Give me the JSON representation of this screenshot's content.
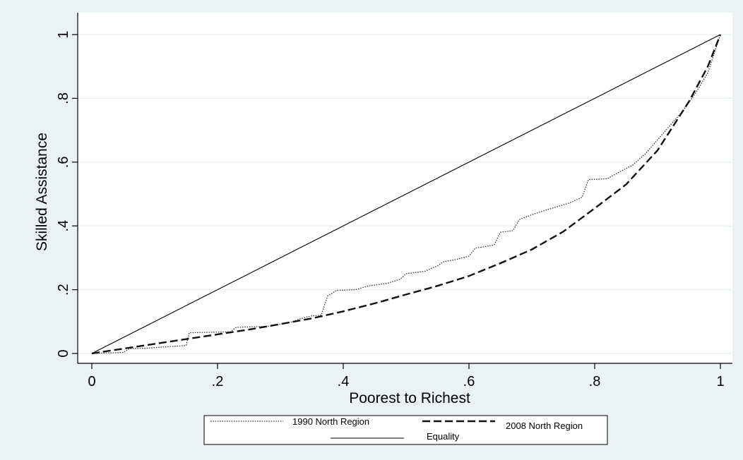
{
  "chart_data": {
    "type": "line",
    "title": "",
    "xlabel": "Poorest to Richest",
    "ylabel": "Skilled Assistance",
    "xlim": [
      0,
      1
    ],
    "ylim": [
      0,
      1
    ],
    "x_ticks": [
      {
        "value": 0,
        "label": "0"
      },
      {
        "value": 0.2,
        "label": ".2"
      },
      {
        "value": 0.4,
        "label": ".4"
      },
      {
        "value": 0.6,
        "label": ".6"
      },
      {
        "value": 0.8,
        "label": ".8"
      },
      {
        "value": 1,
        "label": "1"
      }
    ],
    "y_ticks": [
      {
        "value": 0,
        "label": "0"
      },
      {
        "value": 0.2,
        "label": ".2"
      },
      {
        "value": 0.4,
        "label": ".4"
      },
      {
        "value": 0.6,
        "label": ".6"
      },
      {
        "value": 0.8,
        "label": ".8"
      },
      {
        "value": 1,
        "label": "1"
      }
    ],
    "grid": true,
    "legend_position": "bottom",
    "series": [
      {
        "name": "1990 North Region",
        "style": "dotted",
        "color": "#333333",
        "points": [
          [
            0,
            0
          ],
          [
            0.05,
            0.003
          ],
          [
            0.06,
            0.015
          ],
          [
            0.09,
            0.017
          ],
          [
            0.15,
            0.025
          ],
          [
            0.155,
            0.065
          ],
          [
            0.22,
            0.068
          ],
          [
            0.23,
            0.082
          ],
          [
            0.28,
            0.085
          ],
          [
            0.3,
            0.092
          ],
          [
            0.32,
            0.1
          ],
          [
            0.33,
            0.108
          ],
          [
            0.35,
            0.118
          ],
          [
            0.365,
            0.12
          ],
          [
            0.375,
            0.18
          ],
          [
            0.39,
            0.198
          ],
          [
            0.42,
            0.2
          ],
          [
            0.44,
            0.212
          ],
          [
            0.47,
            0.22
          ],
          [
            0.49,
            0.232
          ],
          [
            0.5,
            0.25
          ],
          [
            0.53,
            0.258
          ],
          [
            0.55,
            0.275
          ],
          [
            0.56,
            0.288
          ],
          [
            0.58,
            0.295
          ],
          [
            0.6,
            0.305
          ],
          [
            0.61,
            0.33
          ],
          [
            0.64,
            0.34
          ],
          [
            0.65,
            0.38
          ],
          [
            0.67,
            0.385
          ],
          [
            0.68,
            0.42
          ],
          [
            0.7,
            0.435
          ],
          [
            0.72,
            0.448
          ],
          [
            0.74,
            0.46
          ],
          [
            0.76,
            0.472
          ],
          [
            0.78,
            0.49
          ],
          [
            0.79,
            0.545
          ],
          [
            0.82,
            0.548
          ],
          [
            0.84,
            0.57
          ],
          [
            0.86,
            0.59
          ],
          [
            0.88,
            0.625
          ],
          [
            0.9,
            0.67
          ],
          [
            0.92,
            0.715
          ],
          [
            0.94,
            0.76
          ],
          [
            0.96,
            0.815
          ],
          [
            0.98,
            0.88
          ],
          [
            1,
            1
          ]
        ]
      },
      {
        "name": "2008 North Region",
        "style": "dashed",
        "color": "#111111",
        "points": [
          [
            0,
            0
          ],
          [
            0.05,
            0.015
          ],
          [
            0.1,
            0.03
          ],
          [
            0.15,
            0.045
          ],
          [
            0.2,
            0.06
          ],
          [
            0.25,
            0.075
          ],
          [
            0.3,
            0.092
          ],
          [
            0.35,
            0.11
          ],
          [
            0.4,
            0.132
          ],
          [
            0.45,
            0.157
          ],
          [
            0.5,
            0.185
          ],
          [
            0.55,
            0.212
          ],
          [
            0.6,
            0.243
          ],
          [
            0.65,
            0.283
          ],
          [
            0.7,
            0.326
          ],
          [
            0.75,
            0.382
          ],
          [
            0.8,
            0.455
          ],
          [
            0.85,
            0.53
          ],
          [
            0.9,
            0.637
          ],
          [
            0.95,
            0.79
          ],
          [
            0.98,
            0.9
          ],
          [
            1,
            1
          ]
        ]
      },
      {
        "name": "Equality",
        "style": "solid",
        "color": "#000000",
        "points": [
          [
            0,
            0
          ],
          [
            1,
            1
          ]
        ]
      }
    ]
  }
}
